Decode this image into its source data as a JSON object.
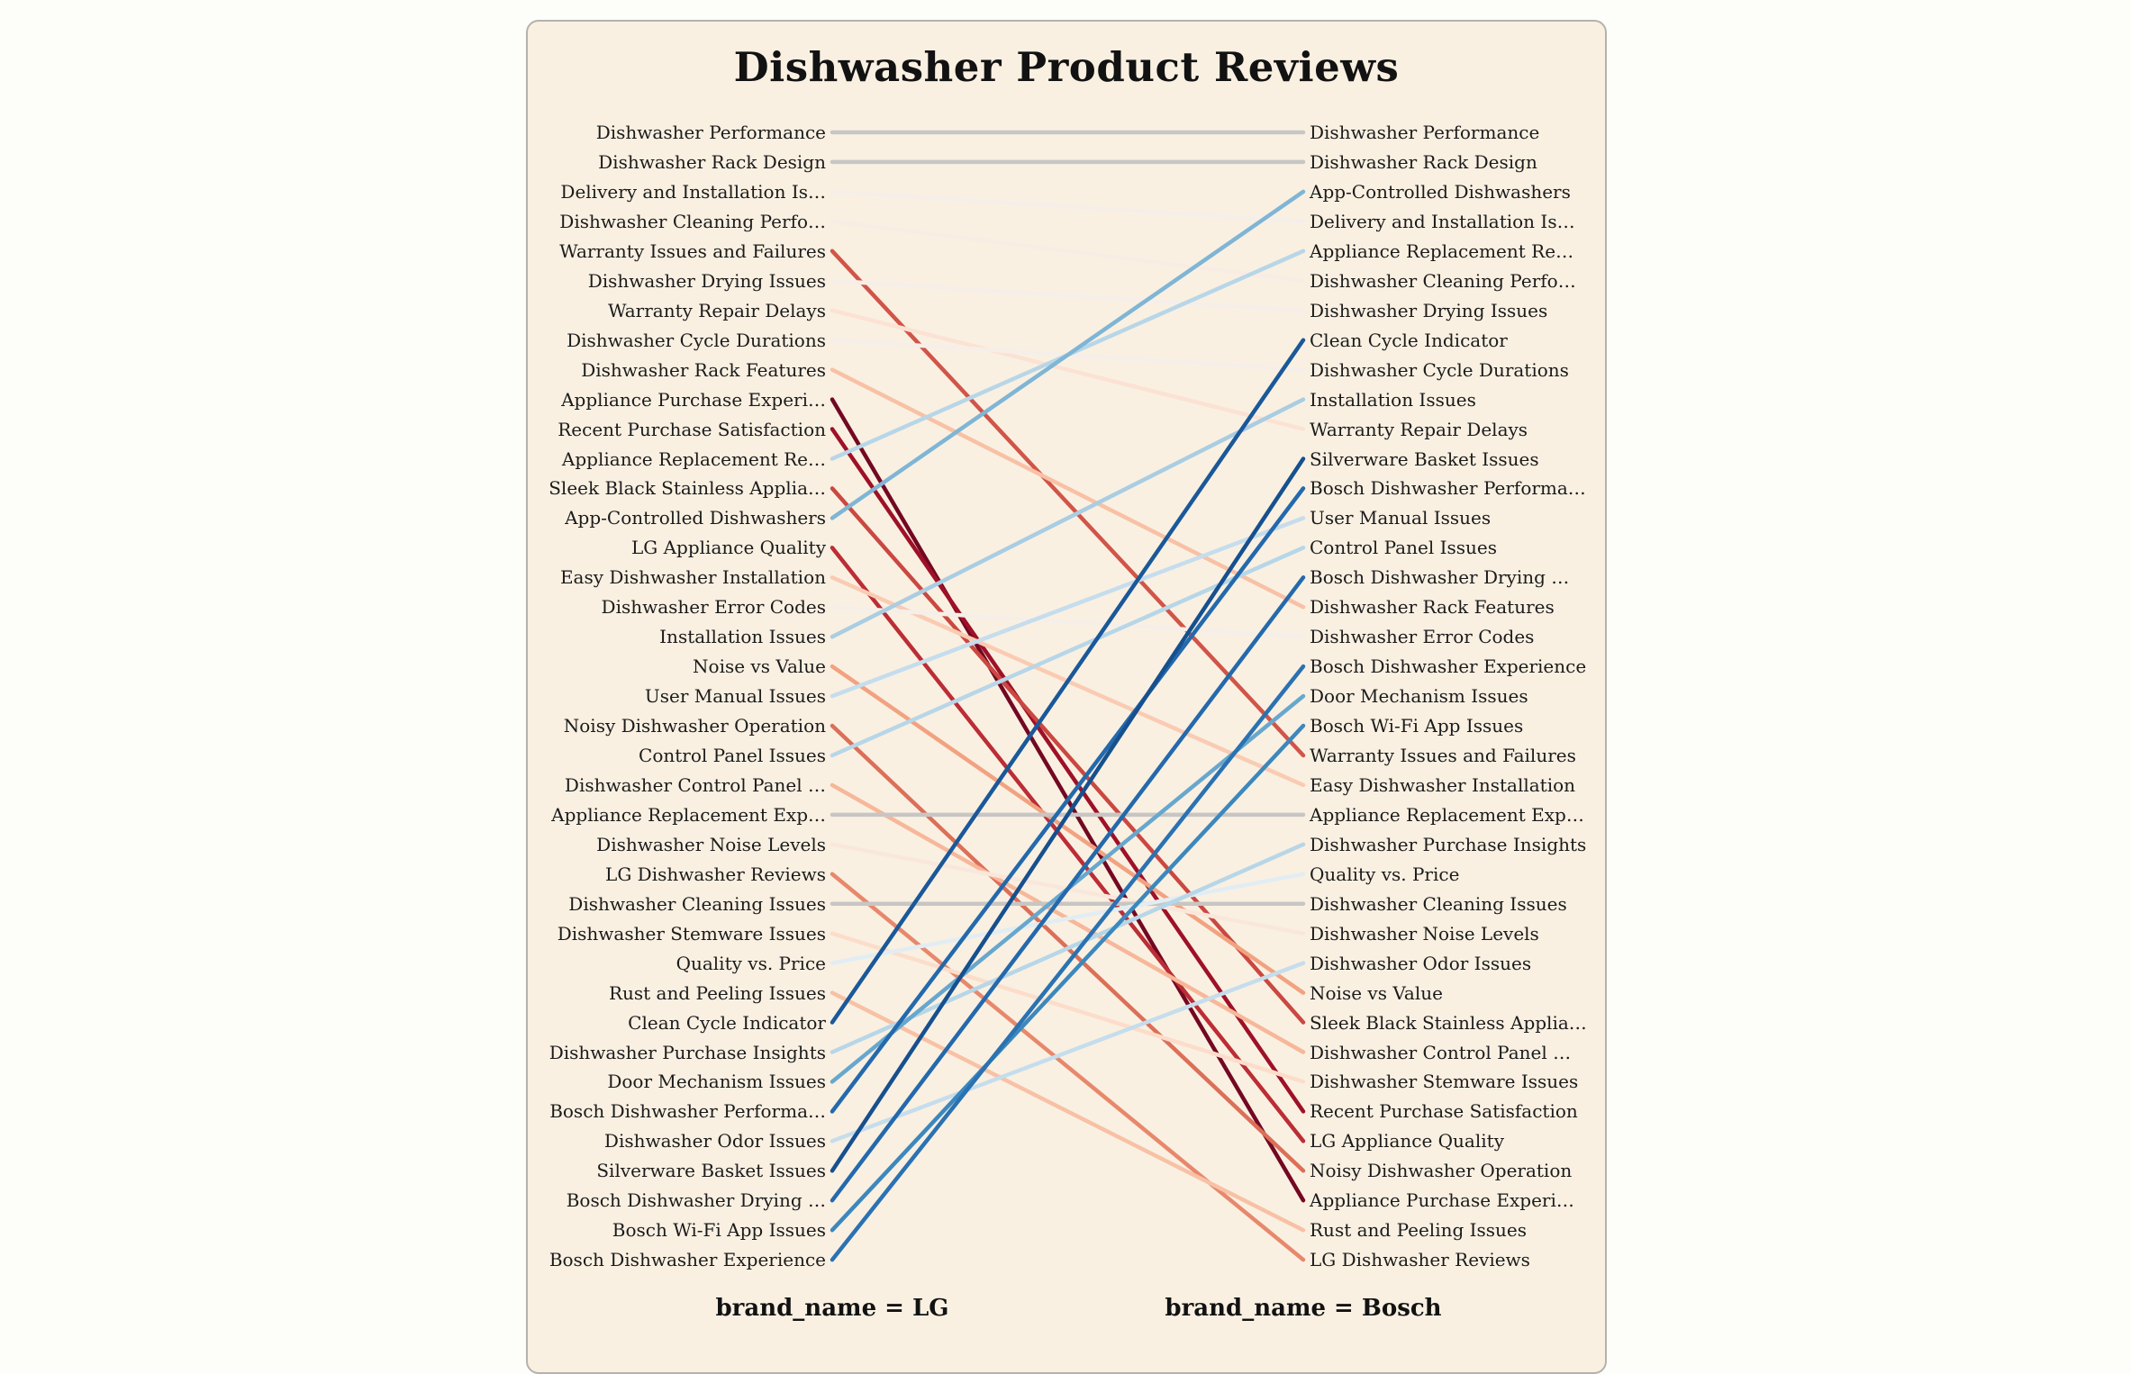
{
  "title": "Dishwasher Product Reviews",
  "colors": {
    "page_background": "#fdfdfa",
    "card_background": "#f9f0e2",
    "card_border": "#b5b2ac",
    "text": "#1b1b1b",
    "zero_change_line": "#c7c6c4",
    "max_decline_line": "#730822",
    "max_rise_line": "#16508e"
  },
  "chart_data": {
    "type": "line",
    "subtype": "slope-rank-chart",
    "left_axis_label": "brand_name = LG",
    "right_axis_label": "brand_name = Bosch",
    "row_count": 39,
    "legend": "none",
    "grid": "off",
    "left_labels": [
      "Dishwasher Performance",
      "Dishwasher Rack Design",
      "Delivery and Installation Is…",
      "Dishwasher Cleaning Perfo…",
      "Warranty Issues and Failures",
      "Dishwasher Drying Issues",
      "Warranty Repair Delays",
      "Dishwasher Cycle Durations",
      "Dishwasher Rack Features",
      "Appliance Purchase Experi…",
      "Recent Purchase Satisfaction",
      "Appliance Replacement Re…",
      "Sleek Black Stainless Applia…",
      "App-Controlled Dishwashers",
      "LG Appliance Quality",
      "Easy Dishwasher Installation",
      "Dishwasher Error Codes",
      "Installation Issues",
      "Noise vs Value",
      "User Manual Issues",
      "Noisy Dishwasher Operation",
      "Control Panel Issues",
      "Dishwasher Control Panel …",
      "Appliance Replacement Exp…",
      "Dishwasher Noise Levels",
      "LG Dishwasher Reviews",
      "Dishwasher Cleaning Issues",
      "Dishwasher Stemware Issues",
      "Quality vs. Price",
      "Rust and Peeling Issues",
      "Clean Cycle Indicator",
      "Dishwasher Purchase Insights",
      "Door Mechanism Issues",
      "Bosch Dishwasher Performa…",
      "Dishwasher Odor Issues",
      "Silverware Basket Issues",
      "Bosch Dishwasher Drying …",
      "Bosch Wi-Fi App Issues",
      "Bosch Dishwasher Experience"
    ],
    "right_labels": [
      "Dishwasher Performance",
      "Dishwasher Rack Design",
      "App-Controlled Dishwashers",
      "Delivery and Installation Is…",
      "Appliance Replacement Re…",
      "Dishwasher Cleaning Perfo…",
      "Dishwasher Drying Issues",
      "Clean Cycle Indicator",
      "Dishwasher Cycle Durations",
      "Installation Issues",
      "Warranty Repair Delays",
      "Silverware Basket Issues",
      "Bosch Dishwasher Performa…",
      "User Manual Issues",
      "Control Panel Issues",
      "Bosch Dishwasher Drying …",
      "Dishwasher Rack Features",
      "Dishwasher Error Codes",
      "Bosch Dishwasher Experience",
      "Door Mechanism Issues",
      "Bosch Wi-Fi App Issues",
      "Warranty Issues and Failures",
      "Easy Dishwasher Installation",
      "Appliance Replacement Exp…",
      "Dishwasher Purchase Insights",
      "Quality vs. Price",
      "Dishwasher Cleaning Issues",
      "Dishwasher Noise Levels",
      "Dishwasher Odor Issues",
      "Noise vs Value",
      "Sleek Black Stainless Applia…",
      "Dishwasher Control Panel …",
      "Dishwasher Stemware Issues",
      "Recent Purchase Satisfaction",
      "LG Appliance Quality",
      "Noisy Dishwasher Operation",
      "Appliance Purchase Experi…",
      "Rust and Peeling Issues",
      "LG Dishwasher Reviews"
    ],
    "links": [
      {
        "topic": "Dishwasher Performance",
        "left_rank": 1,
        "right_rank": 1,
        "rank_change": 0,
        "color": "#c7c6c4"
      },
      {
        "topic": "Dishwasher Rack Design",
        "left_rank": 2,
        "right_rank": 2,
        "rank_change": 0,
        "color": "#c7c6c4"
      },
      {
        "topic": "Delivery and Installation Is…",
        "left_rank": 3,
        "right_rank": 4,
        "rank_change": -1,
        "color": "#f6efe9"
      },
      {
        "topic": "Dishwasher Cleaning Perfo…",
        "left_rank": 4,
        "right_rank": 6,
        "rank_change": -2,
        "color": "#f9ece5"
      },
      {
        "topic": "Warranty Issues and Failures",
        "left_rank": 5,
        "right_rank": 22,
        "rank_change": -17,
        "color": "#d05548"
      },
      {
        "topic": "Dishwasher Drying Issues",
        "left_rank": 6,
        "right_rank": 7,
        "rank_change": -1,
        "color": "#f6efe9"
      },
      {
        "topic": "Warranty Repair Delays",
        "left_rank": 7,
        "right_rank": 11,
        "rank_change": -4,
        "color": "#fbe2d3"
      },
      {
        "topic": "Dishwasher Cycle Durations",
        "left_rank": 8,
        "right_rank": 9,
        "rank_change": -1,
        "color": "#f6efe9"
      },
      {
        "topic": "Dishwasher Rack Features",
        "left_rank": 9,
        "right_rank": 17,
        "rank_change": -8,
        "color": "#f8c1a5"
      },
      {
        "topic": "Appliance Purchase Experi…",
        "left_rank": 10,
        "right_rank": 37,
        "rank_change": -27,
        "color": "#730822"
      },
      {
        "topic": "Recent Purchase Satisfaction",
        "left_rank": 11,
        "right_rank": 34,
        "rank_change": -23,
        "color": "#9e1127"
      },
      {
        "topic": "Appliance Replacement Re…",
        "left_rank": 12,
        "right_rank": 5,
        "rank_change": 7,
        "color": "#b7d6e8"
      },
      {
        "topic": "Sleek Black Stainless Applia…",
        "left_rank": 13,
        "right_rank": 31,
        "rank_change": -18,
        "color": "#ca4841"
      },
      {
        "topic": "App-Controlled Dishwashers",
        "left_rank": 14,
        "right_rank": 3,
        "rank_change": 11,
        "color": "#7fb5d5"
      },
      {
        "topic": "LG Appliance Quality",
        "left_rank": 15,
        "right_rank": 35,
        "rank_change": -20,
        "color": "#bc2d35"
      },
      {
        "topic": "Easy Dishwasher Installation",
        "left_rank": 16,
        "right_rank": 23,
        "rank_change": -7,
        "color": "#facbb2"
      },
      {
        "topic": "Dishwasher Error Codes",
        "left_rank": 17,
        "right_rank": 18,
        "rank_change": -1,
        "color": "#f6efe9"
      },
      {
        "topic": "Installation Issues",
        "left_rank": 18,
        "right_rank": 10,
        "rank_change": 8,
        "color": "#a9cde2"
      },
      {
        "topic": "Noise vs Value",
        "left_rank": 19,
        "right_rank": 30,
        "rank_change": -11,
        "color": "#f2a280"
      },
      {
        "topic": "User Manual Issues",
        "left_rank": 20,
        "right_rank": 14,
        "rank_change": 6,
        "color": "#c5dded"
      },
      {
        "topic": "Noisy Dishwasher Operation",
        "left_rank": 21,
        "right_rank": 36,
        "rank_change": -15,
        "color": "#dc6f58"
      },
      {
        "topic": "Control Panel Issues",
        "left_rank": 22,
        "right_rank": 15,
        "rank_change": 7,
        "color": "#b7d6e8"
      },
      {
        "topic": "Dishwasher Control Panel …",
        "left_rank": 23,
        "right_rank": 32,
        "rank_change": -9,
        "color": "#f7b799"
      },
      {
        "topic": "Appliance Replacement Exp…",
        "left_rank": 24,
        "right_rank": 24,
        "rank_change": 0,
        "color": "#c7c6c4"
      },
      {
        "topic": "Dishwasher Noise Levels",
        "left_rank": 25,
        "right_rank": 28,
        "rank_change": -3,
        "color": "#fae7dc"
      },
      {
        "topic": "LG Dishwasher Reviews",
        "left_rank": 26,
        "right_rank": 39,
        "rank_change": -13,
        "color": "#e7886c"
      },
      {
        "topic": "Dishwasher Cleaning Issues",
        "left_rank": 27,
        "right_rank": 27,
        "rank_change": 0,
        "color": "#c7c6c4"
      },
      {
        "topic": "Dishwasher Stemware Issues",
        "left_rank": 28,
        "right_rank": 33,
        "rank_change": -5,
        "color": "#fcddca"
      },
      {
        "topic": "Quality vs. Price",
        "left_rank": 29,
        "right_rank": 26,
        "rank_change": 3,
        "color": "#e2edf3"
      },
      {
        "topic": "Rust and Peeling Issues",
        "left_rank": 30,
        "right_rank": 38,
        "rank_change": -8,
        "color": "#f8c1a5"
      },
      {
        "topic": "Clean Cycle Indicator",
        "left_rank": 31,
        "right_rank": 8,
        "rank_change": 23,
        "color": "#1a5899"
      },
      {
        "topic": "Dishwasher Purchase Insights",
        "left_rank": 32,
        "right_rank": 25,
        "rank_change": 7,
        "color": "#b7d6e8"
      },
      {
        "topic": "Door Mechanism Issues",
        "left_rank": 33,
        "right_rank": 20,
        "rank_change": 13,
        "color": "#68a7cd"
      },
      {
        "topic": "Bosch Dishwasher Performa…",
        "left_rank": 34,
        "right_rank": 13,
        "rank_change": 21,
        "color": "#2469ac"
      },
      {
        "topic": "Dishwasher Odor Issues",
        "left_rank": 35,
        "right_rank": 29,
        "rank_change": 6,
        "color": "#c5dded"
      },
      {
        "topic": "Silverware Basket Issues",
        "left_rank": 36,
        "right_rank": 12,
        "rank_change": 24,
        "color": "#16508e"
      },
      {
        "topic": "Bosch Dishwasher Drying …",
        "left_rank": 37,
        "right_rank": 16,
        "rank_change": 21,
        "color": "#2469ac"
      },
      {
        "topic": "Bosch Wi-Fi App Issues",
        "left_rank": 38,
        "right_rank": 21,
        "rank_change": 17,
        "color": "#3c88bd"
      },
      {
        "topic": "Bosch Dishwasher Experience",
        "left_rank": 39,
        "right_rank": 19,
        "rank_change": 20,
        "color": "#2a72b2"
      }
    ]
  }
}
